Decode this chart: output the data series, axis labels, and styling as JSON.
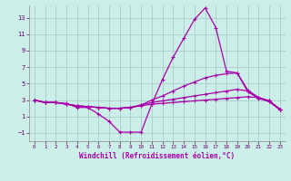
{
  "xlabel": "Windchill (Refroidissement éolien,°C)",
  "background_color": "#cceee8",
  "grid_color": "#aacccc",
  "line_color": "#aa00aa",
  "xlim": [
    -0.5,
    23.5
  ],
  "ylim": [
    -2.0,
    14.5
  ],
  "xticks": [
    0,
    1,
    2,
    3,
    4,
    5,
    6,
    7,
    8,
    9,
    10,
    11,
    12,
    13,
    14,
    15,
    16,
    17,
    18,
    19,
    20,
    21,
    22,
    23
  ],
  "yticks": [
    -1,
    1,
    3,
    5,
    7,
    9,
    11,
    13
  ],
  "line1_x": [
    0,
    1,
    2,
    3,
    4,
    5,
    6,
    7,
    8,
    9,
    10,
    11,
    12,
    13,
    14,
    15,
    16,
    17,
    18,
    19,
    20,
    21,
    22,
    23
  ],
  "line1_y": [
    3.0,
    2.7,
    2.7,
    2.6,
    2.1,
    2.1,
    1.3,
    0.4,
    -0.9,
    -0.9,
    -0.9,
    2.5,
    5.5,
    8.2,
    10.5,
    12.8,
    14.2,
    11.8,
    6.5,
    6.3,
    4.0,
    3.2,
    2.8,
    1.8
  ],
  "line2_x": [
    0,
    1,
    2,
    3,
    4,
    5,
    6,
    7,
    8,
    9,
    10,
    11,
    12,
    13,
    14,
    15,
    16,
    17,
    18,
    19,
    20,
    21,
    22,
    23
  ],
  "line2_y": [
    3.0,
    2.7,
    2.7,
    2.5,
    2.3,
    2.2,
    2.1,
    2.0,
    2.0,
    2.1,
    2.4,
    3.0,
    3.5,
    4.1,
    4.7,
    5.2,
    5.7,
    6.0,
    6.2,
    6.3,
    4.2,
    3.3,
    2.9,
    1.9
  ],
  "line3_x": [
    0,
    1,
    2,
    3,
    4,
    5,
    6,
    7,
    8,
    9,
    10,
    11,
    12,
    13,
    14,
    15,
    16,
    17,
    18,
    19,
    20,
    21,
    22,
    23
  ],
  "line3_y": [
    3.0,
    2.7,
    2.7,
    2.5,
    2.3,
    2.2,
    2.1,
    2.0,
    2.0,
    2.1,
    2.4,
    2.7,
    2.9,
    3.1,
    3.3,
    3.5,
    3.7,
    3.9,
    4.1,
    4.3,
    4.1,
    3.3,
    2.9,
    1.9
  ],
  "line4_x": [
    0,
    1,
    2,
    3,
    4,
    5,
    6,
    7,
    8,
    9,
    10,
    11,
    12,
    13,
    14,
    15,
    16,
    17,
    18,
    19,
    20,
    21,
    22,
    23
  ],
  "line4_y": [
    3.0,
    2.7,
    2.7,
    2.5,
    2.3,
    2.2,
    2.1,
    2.0,
    2.0,
    2.1,
    2.3,
    2.5,
    2.6,
    2.7,
    2.8,
    2.9,
    3.0,
    3.1,
    3.2,
    3.3,
    3.4,
    3.3,
    2.9,
    1.9
  ],
  "xlabel_fontsize": 5.5,
  "tick_fontsize": 4.8,
  "line_width": 0.9,
  "marker_size": 3.5
}
